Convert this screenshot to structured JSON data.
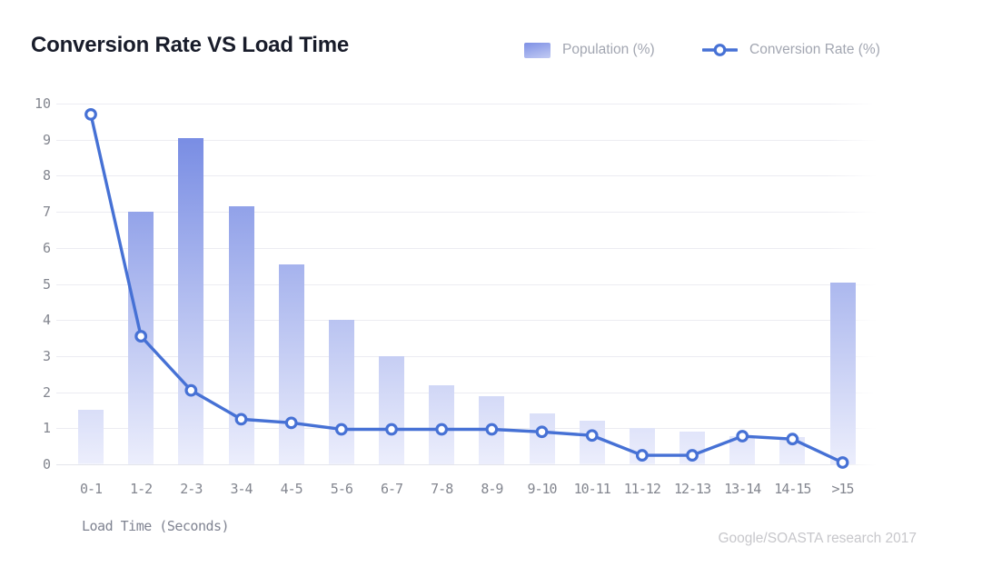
{
  "header": {
    "title": "Conversion Rate VS Load Time",
    "legend": [
      {
        "label": "Population (%)",
        "icon": "bar-swatch-icon"
      },
      {
        "label": "Conversion Rate (%)",
        "icon": "line-marker-icon"
      }
    ]
  },
  "footer": {
    "x_axis_title": "Load Time (Seconds)",
    "source": "Google/SOASTA research 2017"
  },
  "colors": {
    "bar_top": "#6d83e1",
    "bar_bottom": "#eceefc",
    "line": "#4671d5",
    "marker_fill": "#ffffff",
    "grid": "#ececf2",
    "baseline": "#e4e5eb",
    "axis_text": "#83868f",
    "title_text": "#181c2a",
    "legend_text": "#a2a6b1",
    "source_text": "#c7c7cb"
  },
  "chart_data": {
    "type": "bar+line",
    "title": "Conversion Rate VS Load Time",
    "xlabel": "Load Time (Seconds)",
    "ylabel": "",
    "ylim": [
      0,
      10
    ],
    "y_ticks": [
      0,
      1,
      2,
      3,
      4,
      5,
      6,
      7,
      8,
      9,
      10
    ],
    "grid": "horizontal",
    "legend_position": "top-right",
    "source": "Google/SOASTA research 2017",
    "categories": [
      "0-1",
      "1-2",
      "2-3",
      "3-4",
      "4-5",
      "5-6",
      "6-7",
      "7-8",
      "8-9",
      "9-10",
      "10-11",
      "11-12",
      "12-13",
      "13-14",
      "14-15",
      ">15"
    ],
    "series": [
      {
        "name": "Population (%)",
        "type": "bar",
        "values": [
          1.5,
          7.0,
          9.05,
          7.15,
          5.55,
          4.0,
          3.0,
          2.2,
          1.9,
          1.4,
          1.2,
          1.0,
          0.9,
          0.78,
          0.75,
          5.05
        ]
      },
      {
        "name": "Conversion Rate (%)",
        "type": "line",
        "values": [
          9.7,
          3.55,
          2.05,
          1.25,
          1.15,
          0.97,
          0.97,
          0.97,
          0.97,
          0.9,
          0.8,
          0.25,
          0.25,
          0.78,
          0.7,
          0.05
        ]
      }
    ]
  }
}
